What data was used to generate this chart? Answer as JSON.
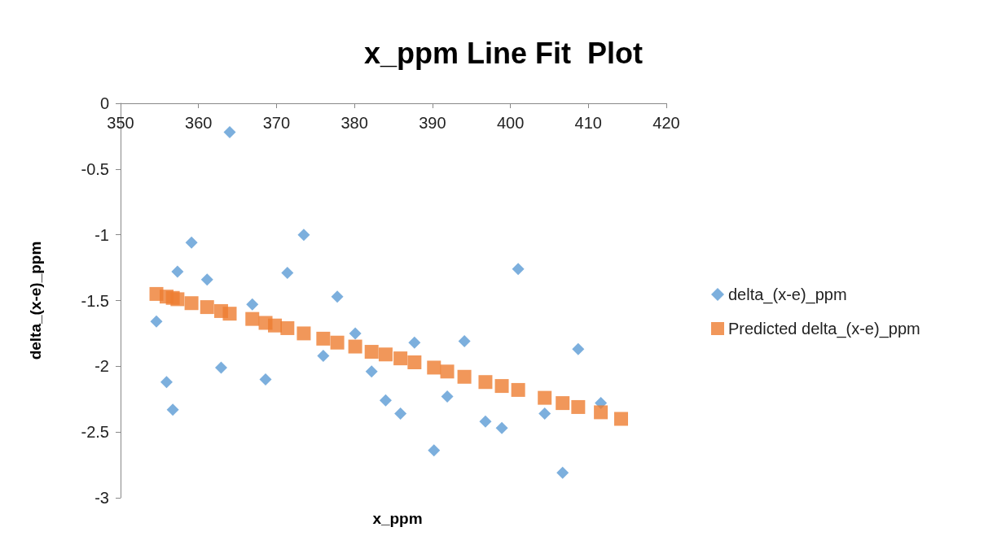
{
  "chart_data": {
    "type": "scatter",
    "title": "x_ppm Line Fit  Plot",
    "xlabel": "x_ppm",
    "ylabel": "delta_(x-e)_ppm",
    "xlim": [
      350,
      420
    ],
    "xticks": [
      350,
      360,
      370,
      380,
      390,
      400,
      410,
      420
    ],
    "ylim": [
      -3,
      0
    ],
    "yticks": [
      -3,
      -2.5,
      -2,
      -1.5,
      -1,
      -0.5,
      0
    ],
    "grid": false,
    "legend": "right",
    "series": [
      {
        "name": "delta_(x-e)_ppm",
        "color": "#5b9bd5",
        "marker": "diamond",
        "x": [
          354.6,
          355.9,
          356.7,
          357.3,
          359.1,
          361.1,
          362.9,
          364.0,
          366.9,
          368.6,
          371.4,
          373.5,
          376.0,
          377.8,
          380.1,
          382.2,
          384.0,
          385.9,
          387.7,
          390.2,
          391.9,
          394.1,
          396.8,
          398.9,
          401.0,
          404.4,
          406.7,
          408.7,
          411.6
        ],
        "values": [
          -1.66,
          -2.12,
          -2.33,
          -1.28,
          -1.06,
          -1.34,
          -2.01,
          -0.22,
          -1.53,
          -2.1,
          -1.29,
          -1.0,
          -1.92,
          -1.47,
          -1.75,
          -2.04,
          -2.26,
          -2.36,
          -1.82,
          -2.64,
          -2.23,
          -1.81,
          -2.42,
          -2.47,
          -1.26,
          -2.36,
          -2.81,
          -1.87,
          -2.28
        ]
      },
      {
        "name": "Predicted delta_(x-e)_ppm",
        "color": "#ed7d31",
        "marker": "square",
        "x": [
          354.6,
          355.9,
          356.7,
          357.3,
          359.1,
          361.1,
          362.9,
          364.0,
          366.9,
          368.6,
          369.8,
          371.4,
          373.5,
          376.0,
          377.8,
          380.1,
          382.2,
          384.0,
          385.9,
          387.7,
          390.2,
          391.9,
          394.1,
          396.8,
          398.9,
          401.0,
          404.4,
          406.7,
          408.7,
          411.6,
          414.2
        ],
        "values": [
          -1.45,
          -1.47,
          -1.48,
          -1.49,
          -1.52,
          -1.55,
          -1.58,
          -1.6,
          -1.64,
          -1.67,
          -1.69,
          -1.71,
          -1.75,
          -1.79,
          -1.82,
          -1.85,
          -1.89,
          -1.91,
          -1.94,
          -1.97,
          -2.01,
          -2.04,
          -2.08,
          -2.12,
          -2.15,
          -2.18,
          -2.24,
          -2.28,
          -2.31,
          -2.35,
          -2.4
        ]
      }
    ]
  }
}
